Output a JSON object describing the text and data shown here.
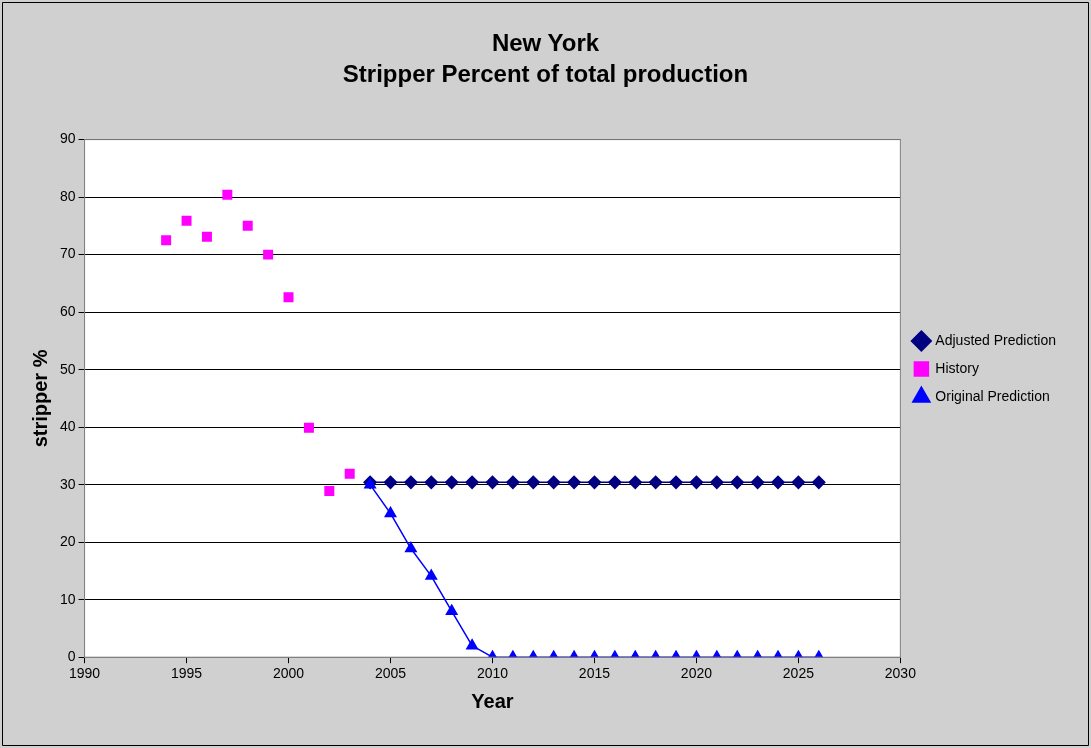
{
  "chart_data": {
    "type": "line",
    "title": "New York",
    "subtitle": "Stripper Percent of total production",
    "xlabel": "Year",
    "ylabel": "stripper %",
    "xlim": [
      1990,
      2030
    ],
    "xticks": [
      1990,
      1995,
      2000,
      2005,
      2010,
      2015,
      2020,
      2025,
      2030
    ],
    "ylim": [
      0,
      90
    ],
    "yticks": [
      0,
      10,
      20,
      30,
      40,
      50,
      60,
      70,
      80,
      90
    ],
    "grid": "y",
    "legend": "right",
    "series": [
      {
        "name": "Adjusted Prediction",
        "type": "line",
        "marker": "diamond",
        "color": "#000080",
        "x": [
          2004,
          2005,
          2006,
          2007,
          2008,
          2009,
          2010,
          2011,
          2012,
          2013,
          2014,
          2015,
          2016,
          2017,
          2018,
          2019,
          2020,
          2021,
          2022,
          2023,
          2024,
          2025,
          2026
        ],
        "values": [
          30.4,
          30.4,
          30.4,
          30.4,
          30.4,
          30.4,
          30.4,
          30.4,
          30.4,
          30.4,
          30.4,
          30.4,
          30.4,
          30.4,
          30.4,
          30.4,
          30.4,
          30.4,
          30.4,
          30.4,
          30.4,
          30.4,
          30.4
        ]
      },
      {
        "name": "History",
        "type": "scatter",
        "marker": "square",
        "color": "#ff00ff",
        "x": [
          1994,
          1995,
          1996,
          1997,
          1998,
          1999,
          2000,
          2001,
          2002,
          2003
        ],
        "values": [
          72.5,
          75.9,
          73.1,
          80.4,
          75.0,
          70.0,
          62.6,
          39.9,
          28.9,
          31.9
        ]
      },
      {
        "name": "Original Prediction",
        "type": "line",
        "marker": "triangle",
        "color": "#0000ff",
        "x": [
          2004,
          2005,
          2006,
          2007,
          2008,
          2009,
          2010,
          2011,
          2012,
          2013,
          2014,
          2015,
          2016,
          2017,
          2018,
          2019,
          2020,
          2021,
          2022,
          2023,
          2024,
          2025,
          2026
        ],
        "values": [
          30,
          25,
          18.9,
          14.1,
          8.0,
          2.0,
          0,
          0,
          0,
          0,
          0,
          0,
          0,
          0,
          0,
          0,
          0,
          0,
          0,
          0,
          0,
          0,
          0
        ]
      }
    ]
  }
}
